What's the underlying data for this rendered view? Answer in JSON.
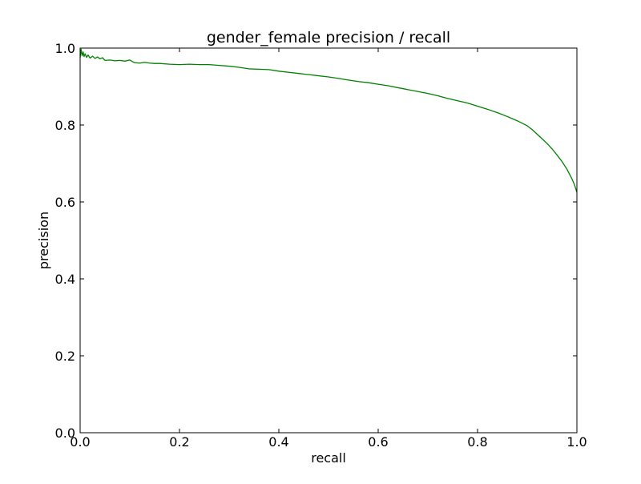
{
  "chart_data": {
    "type": "line",
    "title": "gender_female precision / recall",
    "xlabel": "recall",
    "ylabel": "precision",
    "xlim": [
      0.0,
      1.0
    ],
    "ylim": [
      0.0,
      1.0
    ],
    "x_ticks": [
      "0.0",
      "0.2",
      "0.4",
      "0.6",
      "0.8",
      "1.0"
    ],
    "y_ticks": [
      "0.0",
      "0.2",
      "0.4",
      "0.6",
      "0.8",
      "1.0"
    ],
    "grid": false,
    "legend": "none",
    "series": [
      {
        "color": "#008000",
        "x": [
          0.0,
          0.002,
          0.004,
          0.006,
          0.008,
          0.01,
          0.013,
          0.016,
          0.02,
          0.025,
          0.03,
          0.035,
          0.04,
          0.045,
          0.05,
          0.06,
          0.07,
          0.08,
          0.09,
          0.1,
          0.105,
          0.11,
          0.12,
          0.13,
          0.14,
          0.15,
          0.16,
          0.18,
          0.2,
          0.22,
          0.24,
          0.26,
          0.28,
          0.3,
          0.32,
          0.34,
          0.36,
          0.38,
          0.4,
          0.42,
          0.44,
          0.46,
          0.48,
          0.5,
          0.52,
          0.54,
          0.56,
          0.58,
          0.6,
          0.62,
          0.64,
          0.66,
          0.68,
          0.7,
          0.72,
          0.74,
          0.76,
          0.78,
          0.8,
          0.82,
          0.84,
          0.86,
          0.88,
          0.9,
          0.91,
          0.92,
          0.93,
          0.94,
          0.95,
          0.96,
          0.97,
          0.98,
          0.99,
          0.995,
          1.0
        ],
        "y": [
          0.975,
          0.997,
          0.98,
          0.99,
          0.978,
          0.985,
          0.976,
          0.982,
          0.974,
          0.979,
          0.973,
          0.977,
          0.972,
          0.975,
          0.968,
          0.969,
          0.967,
          0.968,
          0.966,
          0.969,
          0.965,
          0.962,
          0.961,
          0.963,
          0.961,
          0.96,
          0.96,
          0.958,
          0.957,
          0.958,
          0.957,
          0.957,
          0.955,
          0.953,
          0.95,
          0.946,
          0.945,
          0.944,
          0.94,
          0.937,
          0.934,
          0.931,
          0.928,
          0.925,
          0.921,
          0.917,
          0.913,
          0.91,
          0.906,
          0.902,
          0.897,
          0.892,
          0.887,
          0.882,
          0.876,
          0.869,
          0.863,
          0.857,
          0.849,
          0.841,
          0.832,
          0.822,
          0.811,
          0.798,
          0.788,
          0.776,
          0.764,
          0.752,
          0.738,
          0.722,
          0.705,
          0.685,
          0.66,
          0.645,
          0.625
        ]
      }
    ]
  }
}
